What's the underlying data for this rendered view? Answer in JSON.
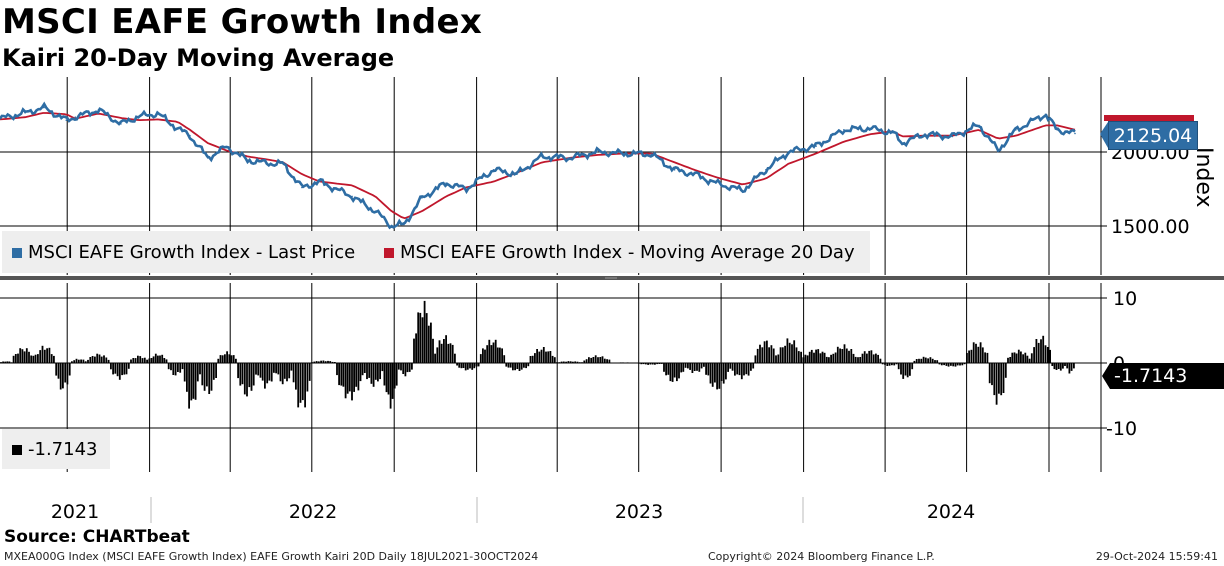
{
  "header": {
    "title": "MSCI EAFE Growth Index",
    "subtitle": "Kairi 20-Day Moving Average"
  },
  "source": "Source: CHARTbeat",
  "footer": {
    "left": "MXEA000G Index (MSCI EAFE Growth Index) EAFE Growth Kairi 20D  Daily 18JUL2021-30OCT2024",
    "center": "Copyright© 2024 Bloomberg Finance L.P.",
    "right": "29-Oct-2024 15:59:41"
  },
  "colors": {
    "price": "#2e6da4",
    "moving_average": "#c0172c",
    "kairi": "#000000",
    "legend_bg": "#eeeeee"
  },
  "chart_data": [
    {
      "type": "line",
      "title": "MSCI EAFE Growth Index",
      "ylabel": "Index",
      "ylim": [
        1420,
        2300
      ],
      "yticks": [
        "2000.00",
        "1500.00"
      ],
      "ytick_values": [
        2000,
        1500
      ],
      "x_year_labels": [
        "2021",
        "2022",
        "2023",
        "2024"
      ],
      "grid": true,
      "legend_position": "bottom-left",
      "last_value_label": "2125.04",
      "x": [
        "2021-07-18",
        "2021-08-15",
        "2021-09-05",
        "2021-09-30",
        "2021-10-10",
        "2021-11-05",
        "2021-11-30",
        "2021-12-20",
        "2022-01-10",
        "2022-02-01",
        "2022-02-15",
        "2022-03-07",
        "2022-03-28",
        "2022-04-20",
        "2022-05-12",
        "2022-05-30",
        "2022-06-20",
        "2022-07-10",
        "2022-08-15",
        "2022-09-10",
        "2022-09-28",
        "2022-10-12",
        "2022-11-01",
        "2022-11-28",
        "2022-12-20",
        "2023-01-20",
        "2023-02-15",
        "2023-03-15",
        "2023-04-15",
        "2023-05-15",
        "2023-06-15",
        "2023-07-15",
        "2023-08-10",
        "2023-09-01",
        "2023-09-25",
        "2023-10-25",
        "2023-11-20",
        "2023-12-15",
        "2024-01-15",
        "2024-02-15",
        "2024-03-15",
        "2024-04-10",
        "2024-04-20",
        "2024-05-15",
        "2024-06-15",
        "2024-07-15",
        "2024-08-05",
        "2024-08-25",
        "2024-09-27",
        "2024-10-10",
        "2024-10-30"
      ],
      "series": [
        {
          "name": "MSCI EAFE Growth Index - Last Price",
          "values": [
            2225,
            2265,
            2300,
            2215,
            2235,
            2285,
            2190,
            2240,
            2260,
            2160,
            2110,
            1960,
            2035,
            1945,
            1925,
            1920,
            1760,
            1800,
            1700,
            1600,
            1500,
            1510,
            1690,
            1790,
            1750,
            1880,
            1850,
            1970,
            1960,
            2000,
            1990,
            1985,
            1880,
            1850,
            1790,
            1740,
            1880,
            2000,
            2040,
            2150,
            2160,
            2130,
            2060,
            2120,
            2105,
            2180,
            2010,
            2150,
            2255,
            2150,
            2125
          ]
        },
        {
          "name": "MSCI EAFE Growth Index - Moving Average 20 Day",
          "values": [
            2220,
            2235,
            2265,
            2255,
            2225,
            2260,
            2230,
            2215,
            2220,
            2205,
            2150,
            2060,
            2010,
            1970,
            1950,
            1930,
            1850,
            1800,
            1775,
            1700,
            1600,
            1550,
            1600,
            1700,
            1760,
            1800,
            1860,
            1930,
            1960,
            1980,
            1990,
            1990,
            1930,
            1880,
            1830,
            1780,
            1820,
            1920,
            1990,
            2070,
            2120,
            2140,
            2105,
            2110,
            2110,
            2150,
            2090,
            2110,
            2180,
            2180,
            2150
          ]
        }
      ]
    },
    {
      "type": "bar",
      "title": "Kairi 20-Day Moving Average",
      "ylim": [
        -17,
        21
      ],
      "yticks": [
        "10",
        "0",
        "-10"
      ],
      "ytick_values": [
        10,
        0,
        -10
      ],
      "grid": true,
      "legend_position": "bottom-left",
      "last_value_label": "-1.7143",
      "x": [
        "2021-07-18",
        "2021-08-15",
        "2021-09-05",
        "2021-09-30",
        "2021-10-10",
        "2021-11-05",
        "2021-11-30",
        "2021-12-20",
        "2022-01-10",
        "2022-02-01",
        "2022-02-15",
        "2022-03-07",
        "2022-03-28",
        "2022-04-20",
        "2022-05-12",
        "2022-05-30",
        "2022-06-20",
        "2022-07-10",
        "2022-08-15",
        "2022-09-10",
        "2022-09-28",
        "2022-10-12",
        "2022-11-01",
        "2022-11-28",
        "2022-12-20",
        "2023-01-20",
        "2023-02-15",
        "2023-03-15",
        "2023-04-15",
        "2023-05-15",
        "2023-06-15",
        "2023-07-15",
        "2023-08-10",
        "2023-09-01",
        "2023-09-25",
        "2023-10-25",
        "2023-11-20",
        "2023-12-15",
        "2024-01-15",
        "2024-02-15",
        "2024-03-15",
        "2024-04-10",
        "2024-04-20",
        "2024-05-15",
        "2024-06-15",
        "2024-07-15",
        "2024-08-05",
        "2024-08-25",
        "2024-09-27",
        "2024-10-10",
        "2024-10-30"
      ],
      "series": [
        {
          "name": "-1.7143",
          "values": [
            0.3,
            2.5,
            2.8,
            -4.5,
            0.7,
            1.5,
            -2.6,
            1.2,
            1.5,
            -2.1,
            -7.5,
            -5.2,
            1.8,
            -5.5,
            -4.0,
            -3.5,
            -7.7,
            0.4,
            -5.9,
            -3.8,
            -7.1,
            -2.1,
            9.8,
            4.4,
            -1.2,
            3.8,
            -1.3,
            2.5,
            0.3,
            1.2,
            0.1,
            -0.3,
            -3.2,
            -1.6,
            -4.4,
            -2.5,
            3.7,
            3.9,
            2.3,
            2.9,
            2.1,
            -0.5,
            -2.7,
            1.0,
            -0.6,
            3.5,
            -6.6,
            2.1,
            4.4,
            -1.3,
            -1.7143
          ]
        }
      ]
    }
  ]
}
